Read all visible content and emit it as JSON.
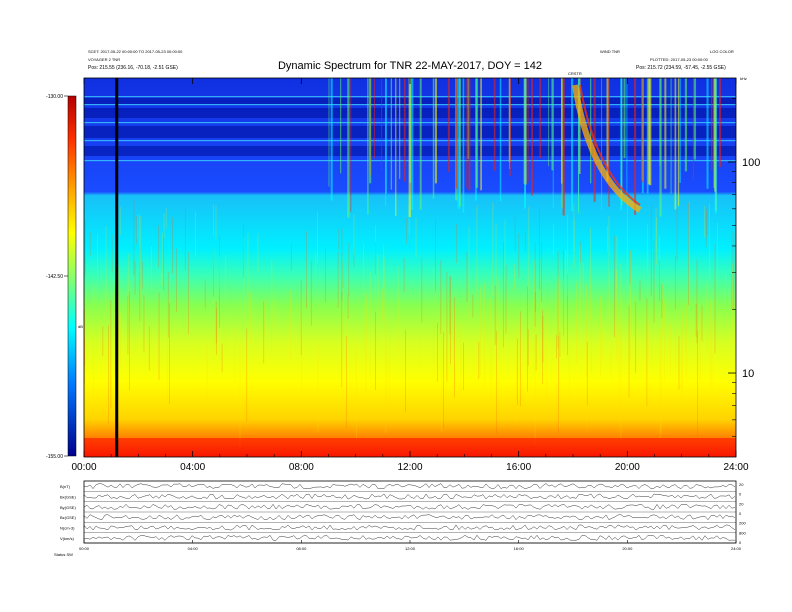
{
  "title": "Dynamic Spectrum for TNR 22-MAY-2017, DOY = 142",
  "header": {
    "left_line1": "SCET: 2017-05-22 00:00:00 TO 2017-05-23 00:00:00",
    "left_line2": "VOYAGER 2 TNR",
    "left_line3": "Pos:   215.55 (236.16, -70.18, -2.51 GSE)",
    "right_line1": "WIND TNR",
    "right_line2": "LOG COLOR",
    "right_line3": "PLOTTED: 2017-05-23 00:00:00",
    "right_line4": "Pos:   215.72 (234.59, -57.45, -2.55 GSE)",
    "marker": "CRSTR",
    "kHz_label": "kHz"
  },
  "chart_data": {
    "type": "heatmap",
    "title": "Dynamic Spectrum for TNR 22-MAY-2017, DOY = 142",
    "x_ticks": [
      "00:00",
      "04:00",
      "08:00",
      "12:00",
      "16:00",
      "20:00",
      "24:00"
    ],
    "x_range_hours": [
      0,
      24
    ],
    "y_scale": "log",
    "y_ticks": [
      10,
      100
    ],
    "y_range_khz": [
      4,
      250
    ],
    "colorbar": {
      "ticks": [
        "-130.00",
        "-142.50",
        "-155.00"
      ],
      "range": [
        -155,
        -130
      ],
      "label": "dB",
      "colors": [
        "#00008c",
        "#0000ff",
        "#00b4ff",
        "#00ffff",
        "#78ff78",
        "#ffff00",
        "#ffa000",
        "#ff0000",
        "#c80000"
      ]
    },
    "field_panel": {
      "x_ticks": [
        "00:00",
        "04:00",
        "08:00",
        "12:00",
        "16:00",
        "20:00",
        "24:00"
      ],
      "left_labels": [
        "B(nT)",
        "Bx(GSE)",
        "By(GSE)",
        "Bz(GSE)",
        "N(cm-3)",
        "V(km/s)"
      ],
      "right_labels": [
        "20",
        "0",
        "20",
        "0",
        "200",
        "800",
        "0"
      ],
      "bottom_left": "Status   SW"
    }
  }
}
